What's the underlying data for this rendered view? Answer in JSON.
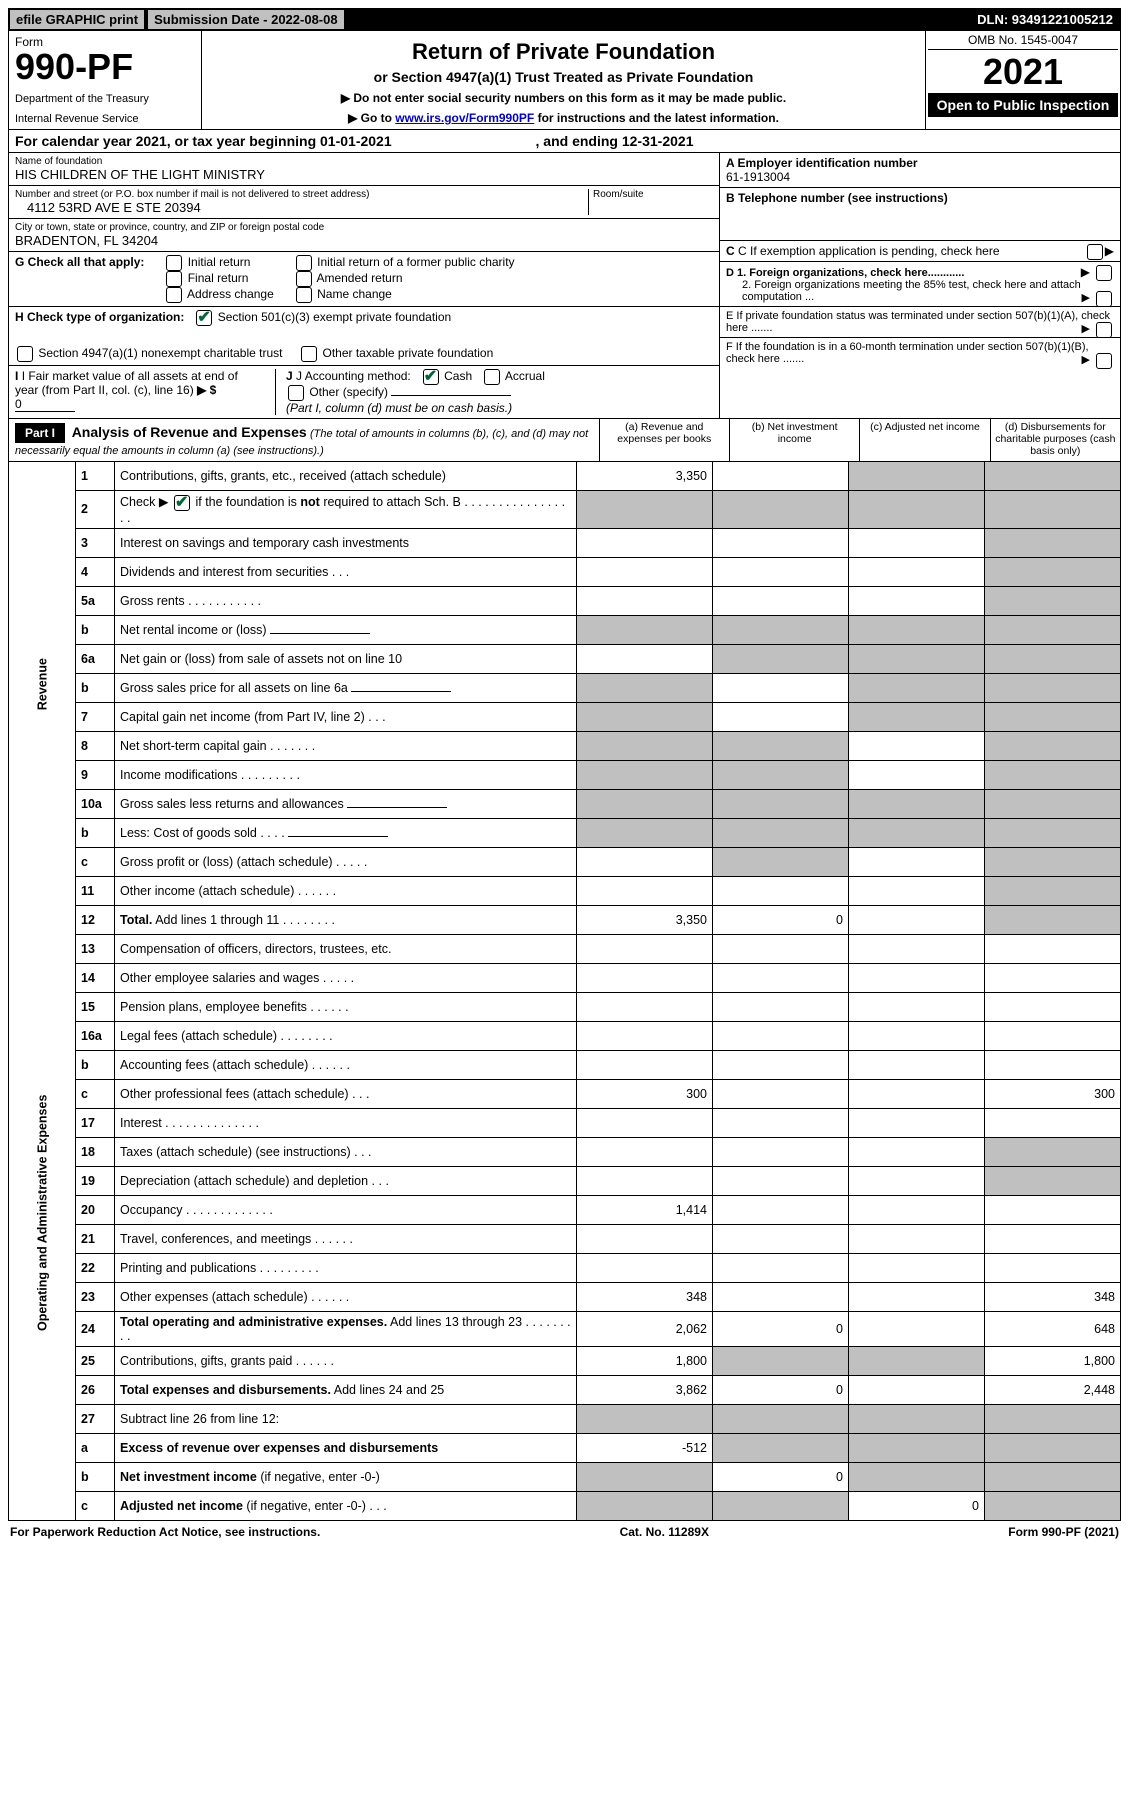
{
  "top": {
    "efile": "efile GRAPHIC print",
    "submission_label": "Submission Date - 2022-08-08",
    "dln": "DLN: 93491221005212"
  },
  "header": {
    "form_word": "Form",
    "form_no": "990-PF",
    "dept": "Department of the Treasury",
    "irs": "Internal Revenue Service",
    "title": "Return of Private Foundation",
    "subtitle": "or Section 4947(a)(1) Trust Treated as Private Foundation",
    "note1": "▶ Do not enter social security numbers on this form as it may be made public.",
    "note2_pre": "▶ Go to ",
    "note2_link": "www.irs.gov/Form990PF",
    "note2_post": " for instructions and the latest information.",
    "omb": "OMB No. 1545-0047",
    "year": "2021",
    "open": "Open to Public Inspection"
  },
  "calyear": {
    "text_pre": "For calendar year 2021, or tax year beginning 01-01-2021",
    "text_mid": ", and ending 12-31-2021"
  },
  "entity": {
    "name_lbl": "Name of foundation",
    "name": "HIS CHILDREN OF THE LIGHT MINISTRY",
    "addr_lbl": "Number and street (or P.O. box number if mail is not delivered to street address)",
    "addr": "4112 53RD AVE E STE 20394",
    "room_lbl": "Room/suite",
    "city_lbl": "City or town, state or province, country, and ZIP or foreign postal code",
    "city": "BRADENTON, FL  34204"
  },
  "right": {
    "a_lbl": "A Employer identification number",
    "ein": "61-1913004",
    "b_lbl": "B Telephone number (see instructions)",
    "c_lbl": "C If exemption application is pending, check here",
    "d1": "D 1. Foreign organizations, check here............",
    "d2": "2. Foreign organizations meeting the 85% test, check here and attach computation ...",
    "e": "E  If private foundation status was terminated under section 507(b)(1)(A), check here .......",
    "f": "F  If the foundation is in a 60-month termination under section 507(b)(1)(B), check here .......",
    "arrow": "▶"
  },
  "checks": {
    "g_lbl": "G Check all that apply:",
    "g1": "Initial return",
    "g2": "Final return",
    "g3": "Address change",
    "g4": "Initial return of a former public charity",
    "g5": "Amended return",
    "g6": "Name change",
    "h_lbl": "H Check type of organization:",
    "h1": "Section 501(c)(3) exempt private foundation",
    "h2": "Section 4947(a)(1) nonexempt charitable trust",
    "h3": "Other taxable private foundation",
    "i_lbl": "I Fair market value of all assets at end of year (from Part II, col. (c), line 16)",
    "i_val": "0",
    "i_arrow": "▶ $",
    "j_lbl": "J Accounting method:",
    "j1": "Cash",
    "j2": "Accrual",
    "j3": "Other (specify)",
    "j_note": "(Part I, column (d) must be on cash basis.)"
  },
  "part1": {
    "label": "Part I",
    "title": "Analysis of Revenue and Expenses",
    "note": "(The total of amounts in columns (b), (c), and (d) may not necessarily equal the amounts in column (a) (see instructions).)",
    "col_a": "(a)   Revenue and expenses per books",
    "col_b": "(b)   Net investment income",
    "col_c": "(c)   Adjusted net income",
    "col_d": "(d)   Disbursements for charitable purposes (cash basis only)"
  },
  "side": {
    "revenue": "Revenue",
    "expenses": "Operating and Administrative Expenses"
  },
  "rows": [
    {
      "n": "1",
      "d": "Contributions, gifts, grants, etc., received (attach schedule)",
      "a": "3,350",
      "shade_b": false,
      "shade_c": true,
      "shade_d": true
    },
    {
      "n": "2",
      "d": "Check ▶ [✔] if the foundation is <b>not</b> required to attach Sch. B   .  .  .  .  .  .  .  .  .  .  .  .  .  .  .  .  .",
      "shade_a": true,
      "shade_b": true,
      "shade_c": true,
      "shade_d": true
    },
    {
      "n": "3",
      "d": "Interest on savings and temporary cash investments",
      "shade_d": true
    },
    {
      "n": "4",
      "d": "Dividends and interest from securities   .   .   .",
      "shade_d": true
    },
    {
      "n": "5a",
      "d": "Gross rents   .   .   .   .   .   .   .   .   .   .   .",
      "shade_d": true
    },
    {
      "n": "b",
      "d": "Net rental income or (loss)",
      "inline": true,
      "shade_a": true,
      "shade_b": true,
      "shade_c": true,
      "shade_d": true
    },
    {
      "n": "6a",
      "d": "Net gain or (loss) from sale of assets not on line 10",
      "shade_b": true,
      "shade_c": true,
      "shade_d": true
    },
    {
      "n": "b",
      "d": "Gross sales price for all assets on line 6a",
      "inline": true,
      "shade_a": true,
      "shade_c": true,
      "shade_d": true
    },
    {
      "n": "7",
      "d": "Capital gain net income (from Part IV, line 2)   .   .   .",
      "shade_a": true,
      "shade_c": true,
      "shade_d": true
    },
    {
      "n": "8",
      "d": "Net short-term capital gain   .   .   .   .   .   .   .",
      "shade_a": true,
      "shade_b": true,
      "shade_d": true
    },
    {
      "n": "9",
      "d": "Income modifications   .   .   .   .   .   .   .   .   .",
      "shade_a": true,
      "shade_b": true,
      "shade_d": true
    },
    {
      "n": "10a",
      "d": "Gross sales less returns and allowances",
      "inline": true,
      "shade_a": true,
      "shade_b": true,
      "shade_c": true,
      "shade_d": true
    },
    {
      "n": "b",
      "d": "Less: Cost of goods sold   .   .   .   .",
      "inline": true,
      "shade_a": true,
      "shade_b": true,
      "shade_c": true,
      "shade_d": true
    },
    {
      "n": "c",
      "d": "Gross profit or (loss) (attach schedule)   .   .   .   .   .",
      "shade_b": true,
      "shade_d": true
    },
    {
      "n": "11",
      "d": "Other income (attach schedule)   .   .   .   .   .   .",
      "shade_d": true
    },
    {
      "n": "12",
      "d": "<b>Total.</b> Add lines 1 through 11   .   .   .   .   .   .   .   .",
      "a": "3,350",
      "b": "0",
      "shade_d": true
    },
    {
      "n": "13",
      "d": "Compensation of officers, directors, trustees, etc."
    },
    {
      "n": "14",
      "d": "Other employee salaries and wages   .   .   .   .   ."
    },
    {
      "n": "15",
      "d": "Pension plans, employee benefits   .   .   .   .   .   ."
    },
    {
      "n": "16a",
      "d": "Legal fees (attach schedule)   .   .   .   .   .   .   .   ."
    },
    {
      "n": "b",
      "d": "Accounting fees (attach schedule)   .   .   .   .   .   ."
    },
    {
      "n": "c",
      "d": "Other professional fees (attach schedule)   .   .   .",
      "a": "300",
      "d_val": "300"
    },
    {
      "n": "17",
      "d": "Interest   .   .   .   .   .   .   .   .   .   .   .   .   .   ."
    },
    {
      "n": "18",
      "d": "Taxes (attach schedule) (see instructions)   .   .   .",
      "shade_d": true
    },
    {
      "n": "19",
      "d": "Depreciation (attach schedule) and depletion   .   .   .",
      "shade_d": true
    },
    {
      "n": "20",
      "d": "Occupancy   .   .   .   .   .   .   .   .   .   .   .   .   .",
      "a": "1,414"
    },
    {
      "n": "21",
      "d": "Travel, conferences, and meetings   .   .   .   .   .   ."
    },
    {
      "n": "22",
      "d": "Printing and publications   .   .   .   .   .   .   .   .   ."
    },
    {
      "n": "23",
      "d": "Other expenses (attach schedule)   .   .   .   .   .   .",
      "a": "348",
      "d_val": "348"
    },
    {
      "n": "24",
      "d": "<b>Total operating and administrative expenses.</b> Add lines 13 through 23   .   .   .   .   .   .   .   .   .",
      "a": "2,062",
      "b": "0",
      "d_val": "648"
    },
    {
      "n": "25",
      "d": "Contributions, gifts, grants paid   .   .   .   .   .   .",
      "a": "1,800",
      "shade_b": true,
      "shade_c": true,
      "d_val": "1,800"
    },
    {
      "n": "26",
      "d": "<b>Total expenses and disbursements.</b> Add lines 24 and 25",
      "a": "3,862",
      "b": "0",
      "d_val": "2,448"
    },
    {
      "n": "27",
      "d": "Subtract line 26 from line 12:",
      "shade_a": true,
      "shade_b": true,
      "shade_c": true,
      "shade_d": true
    },
    {
      "n": "a",
      "d": "<b>Excess of revenue over expenses and disbursements</b>",
      "a": "-512",
      "shade_b": true,
      "shade_c": true,
      "shade_d": true
    },
    {
      "n": "b",
      "d": "<b>Net investment income</b> (if negative, enter -0-)",
      "shade_a": true,
      "b": "0",
      "shade_c": true,
      "shade_d": true
    },
    {
      "n": "c",
      "d": "<b>Adjusted net income</b> (if negative, enter -0-)   .   .   .",
      "shade_a": true,
      "shade_b": true,
      "c": "0",
      "shade_d": true
    }
  ],
  "footer": {
    "left": "For Paperwork Reduction Act Notice, see instructions.",
    "mid": "Cat. No. 11289X",
    "right": "Form 990-PF (2021)"
  }
}
